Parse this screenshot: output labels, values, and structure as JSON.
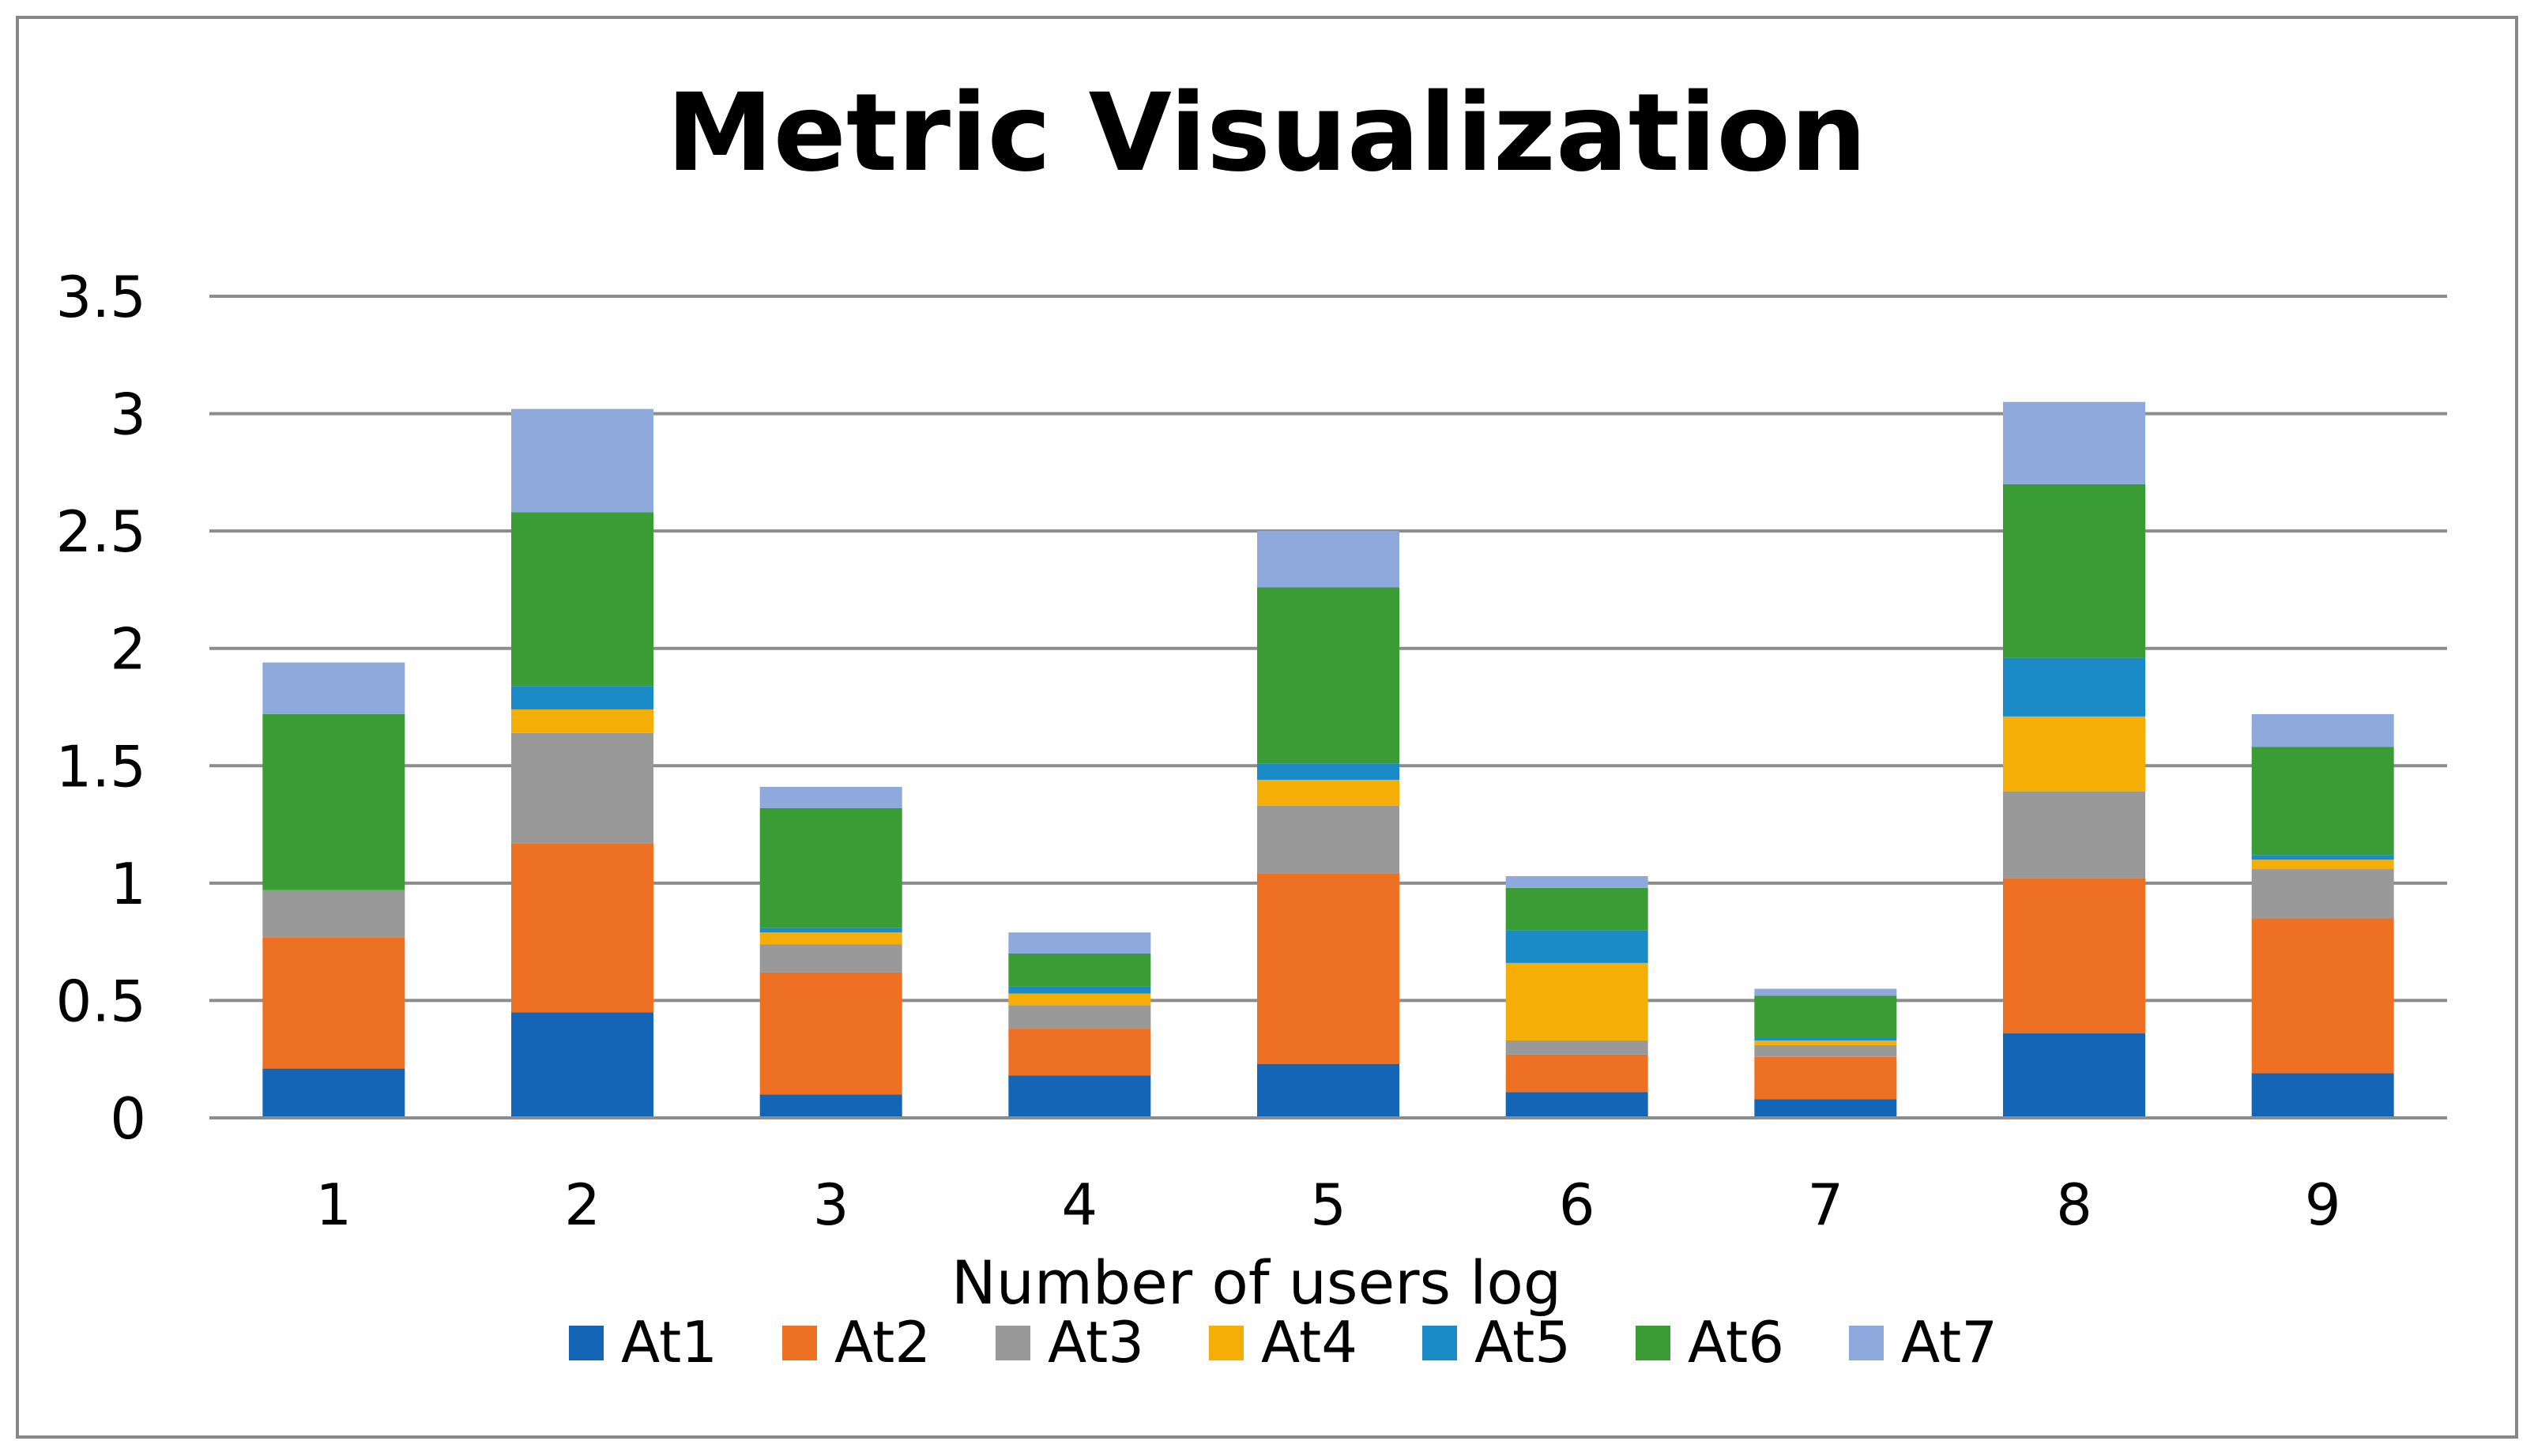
{
  "chart_data": {
    "type": "bar",
    "stacked": true,
    "title": "Metric Visualization",
    "xlabel": "Number of users log",
    "ylabel": "",
    "ylim": [
      0,
      3.5
    ],
    "yticks": [
      "0",
      "0.5",
      "1",
      "1.5",
      "2",
      "2.5",
      "3",
      "3.5"
    ],
    "ytick_values": [
      0,
      0.5,
      1,
      1.5,
      2,
      2.5,
      3,
      3.5
    ],
    "grid": true,
    "legend_position": "bottom",
    "categories": [
      "1",
      "2",
      "3",
      "4",
      "5",
      "6",
      "7",
      "8",
      "9"
    ],
    "series": [
      {
        "name": "At1",
        "color": "#1565B7",
        "values": [
          0.21,
          0.45,
          0.1,
          0.18,
          0.23,
          0.11,
          0.08,
          0.36,
          0.19
        ]
      },
      {
        "name": "At2",
        "color": "#ED7023",
        "values": [
          0.56,
          0.72,
          0.52,
          0.2,
          0.81,
          0.16,
          0.18,
          0.66,
          0.66
        ]
      },
      {
        "name": "At3",
        "color": "#999999",
        "values": [
          0.2,
          0.47,
          0.12,
          0.1,
          0.29,
          0.06,
          0.05,
          0.37,
          0.21
        ]
      },
      {
        "name": "At4",
        "color": "#F5AE06",
        "values": [
          0.0,
          0.1,
          0.05,
          0.05,
          0.11,
          0.33,
          0.02,
          0.32,
          0.04
        ]
      },
      {
        "name": "At5",
        "color": "#1A8BC7",
        "values": [
          0.0,
          0.1,
          0.02,
          0.03,
          0.07,
          0.14,
          0.01,
          0.25,
          0.02
        ]
      },
      {
        "name": "At6",
        "color": "#3A9C35",
        "values": [
          0.75,
          0.74,
          0.51,
          0.14,
          0.75,
          0.18,
          0.18,
          0.74,
          0.46
        ]
      },
      {
        "name": "At7",
        "color": "#8EA9DB",
        "values": [
          0.22,
          0.44,
          0.09,
          0.09,
          0.24,
          0.05,
          0.03,
          0.35,
          0.14
        ]
      }
    ]
  }
}
